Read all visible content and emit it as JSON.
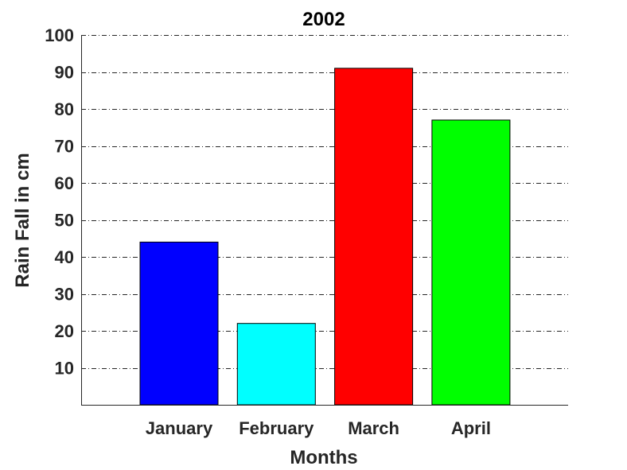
{
  "chart_data": {
    "type": "bar",
    "title": "2002",
    "xlabel": "Months",
    "ylabel": "Rain Fall in cm",
    "categories": [
      "January",
      "February",
      "March",
      "April"
    ],
    "values": [
      44,
      22,
      91,
      77
    ],
    "colors": [
      "#0000ff",
      "#00ffff",
      "#ff0000",
      "#00ff00"
    ],
    "ylim": [
      0,
      100
    ],
    "yticks": [
      "10",
      "20",
      "30",
      "40",
      "50",
      "60",
      "70",
      "80",
      "90",
      "100"
    ],
    "ytick_values": [
      10,
      20,
      30,
      40,
      50,
      60,
      70,
      80,
      90,
      100
    ],
    "grid": "horizontal dash-dot",
    "legend": "none"
  }
}
